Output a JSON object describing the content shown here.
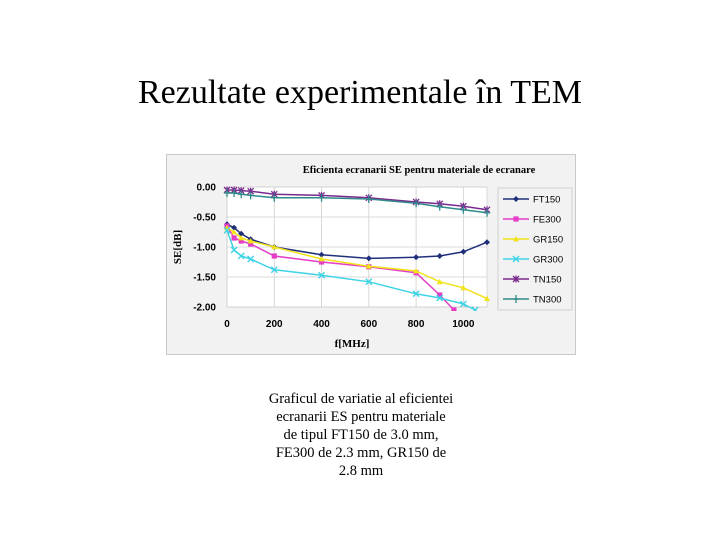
{
  "slide": {
    "title": "Rezultate experimentale în TEM",
    "caption_lines": [
      "Graficul de variatie al eficientei",
      "ecranarii ES pentru materiale",
      "de tipul   FT150 de 3.0 mm,",
      "FE300 de 2.3 mm, GR150 de",
      "2.8 mm"
    ]
  },
  "chart_data": {
    "type": "line",
    "title": "Eficienta ecranarii SE pentru materiale de ecranare",
    "xlabel": "f[MHz]",
    "ylabel": "SE[dB]",
    "xlim": [
      0,
      1100
    ],
    "ylim": [
      -2.0,
      0.0
    ],
    "x_ticks": [
      "0",
      "200",
      "400",
      "600",
      "800",
      "1000"
    ],
    "y_ticks": [
      "0.00",
      "-0.50",
      "-1.00",
      "-1.50",
      "-2.00"
    ],
    "grid": true,
    "legend_position": "right",
    "series": [
      {
        "name": "FT150",
        "color": "#1f2f7a",
        "marker": "diamond",
        "x": [
          0,
          30,
          60,
          100,
          200,
          400,
          600,
          800,
          900,
          1000,
          1100
        ],
        "y": [
          -0.62,
          -0.68,
          -0.78,
          -0.87,
          -1.0,
          -1.13,
          -1.19,
          -1.17,
          -1.15,
          -1.08,
          -0.92
        ]
      },
      {
        "name": "FE300",
        "color": "#e33cc7",
        "marker": "square",
        "x": [
          0,
          30,
          60,
          100,
          200,
          400,
          600,
          800,
          900,
          960
        ],
        "y": [
          -0.65,
          -0.85,
          -0.9,
          -0.95,
          -1.15,
          -1.25,
          -1.33,
          -1.43,
          -1.8,
          -2.05
        ]
      },
      {
        "name": "GR150",
        "color": "#f2e21a",
        "marker": "triangle",
        "x": [
          0,
          30,
          60,
          100,
          200,
          400,
          600,
          800,
          900,
          1000,
          1100
        ],
        "y": [
          -0.68,
          -0.75,
          -0.85,
          -0.9,
          -1.0,
          -1.2,
          -1.32,
          -1.4,
          -1.58,
          -1.68,
          -1.86
        ]
      },
      {
        "name": "GR300",
        "color": "#3fd3e6",
        "marker": "x",
        "x": [
          0,
          30,
          60,
          100,
          200,
          400,
          600,
          800,
          900,
          1000,
          1050
        ],
        "y": [
          -0.72,
          -1.05,
          -1.15,
          -1.2,
          -1.38,
          -1.47,
          -1.58,
          -1.78,
          -1.85,
          -1.95,
          -2.05
        ]
      },
      {
        "name": "TN150",
        "color": "#7a2a8e",
        "marker": "star",
        "x": [
          0,
          30,
          60,
          100,
          200,
          400,
          600,
          800,
          900,
          1000,
          1100
        ],
        "y": [
          -0.05,
          -0.05,
          -0.06,
          -0.07,
          -0.12,
          -0.14,
          -0.18,
          -0.25,
          -0.28,
          -0.32,
          -0.38
        ]
      },
      {
        "name": "TN300",
        "color": "#2f8a8a",
        "marker": "plus",
        "x": [
          0,
          30,
          60,
          100,
          200,
          400,
          600,
          800,
          900,
          1000,
          1100
        ],
        "y": [
          -0.1,
          -0.1,
          -0.12,
          -0.14,
          -0.18,
          -0.18,
          -0.2,
          -0.27,
          -0.33,
          -0.38,
          -0.43
        ]
      }
    ]
  }
}
